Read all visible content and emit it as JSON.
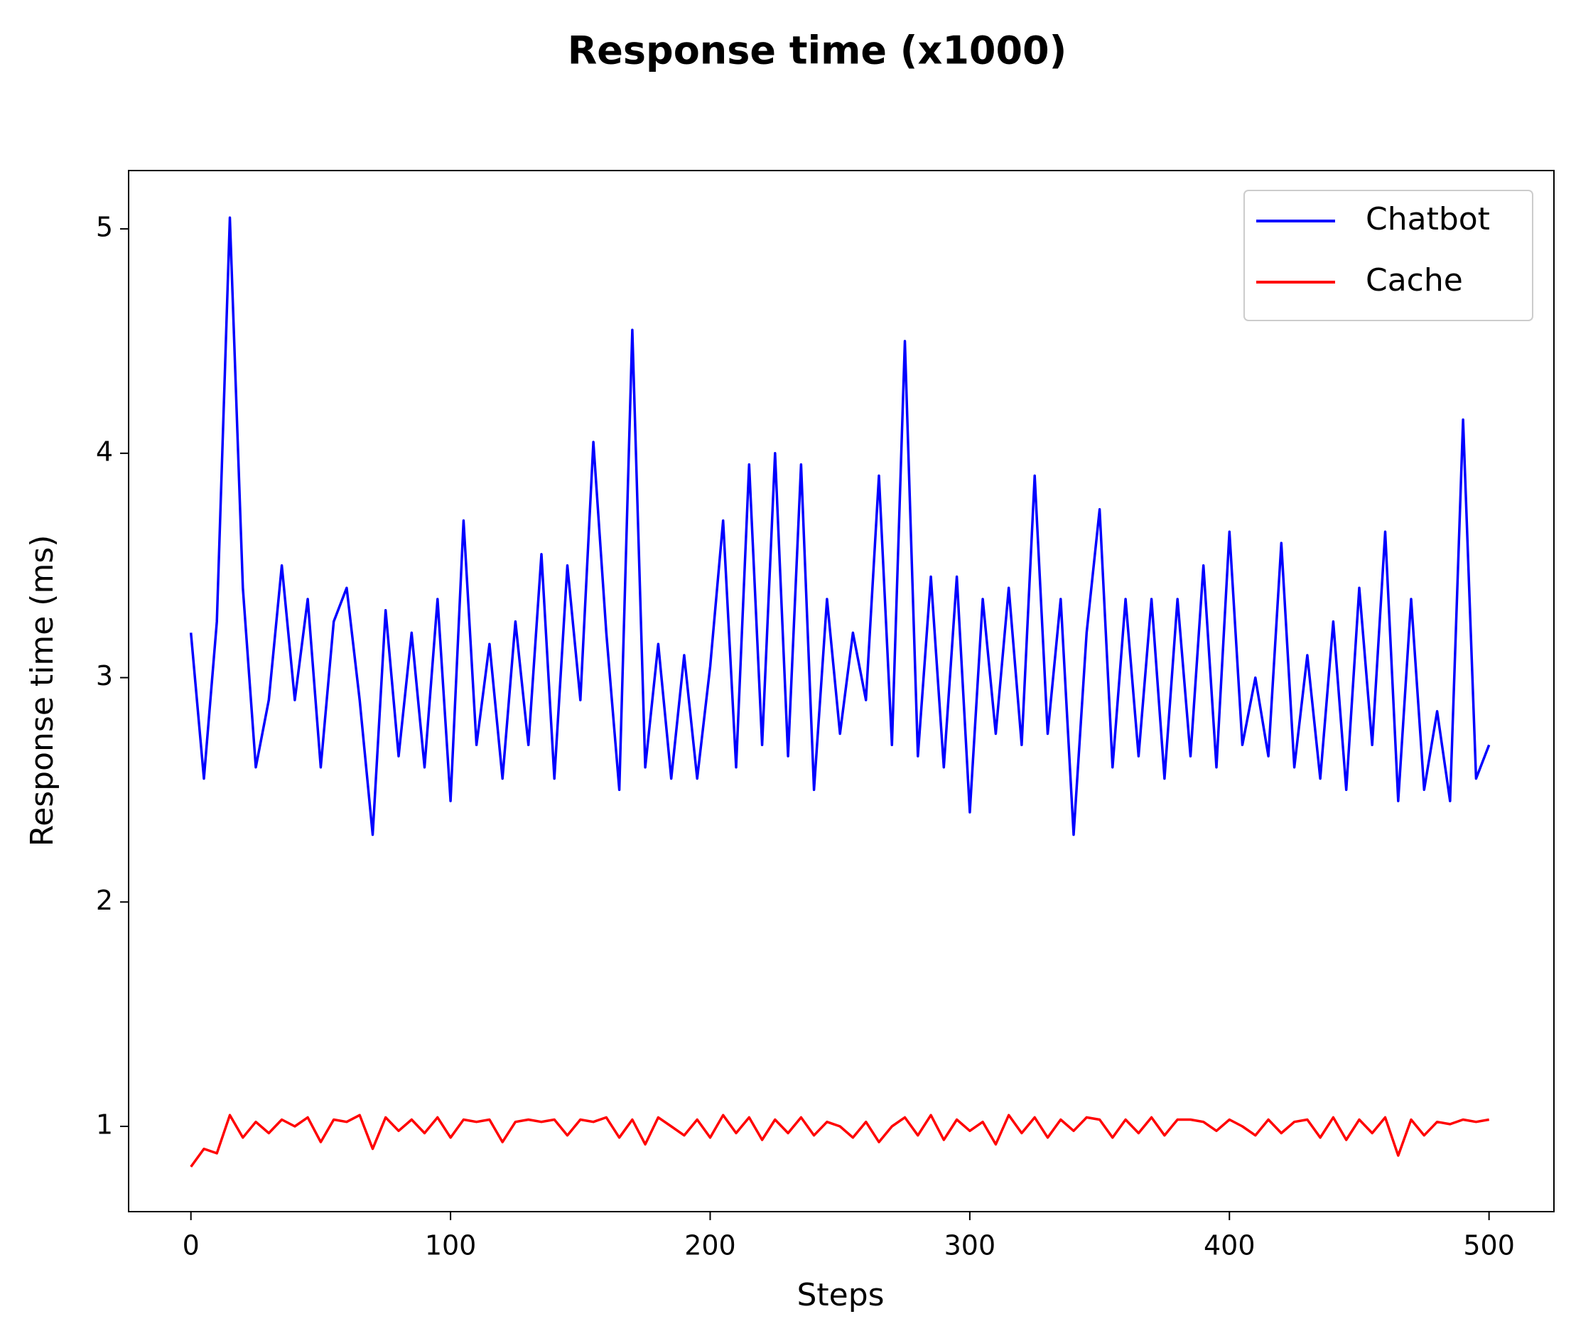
{
  "chart_data": {
    "type": "line",
    "title": "Response time (x1000)",
    "x_label": "Steps",
    "y_label": "Response time (ms)",
    "x": [
      0,
      5,
      10,
      15,
      20,
      25,
      30,
      35,
      40,
      45,
      50,
      55,
      60,
      65,
      70,
      75,
      80,
      85,
      90,
      95,
      100,
      105,
      110,
      115,
      120,
      125,
      130,
      135,
      140,
      145,
      150,
      155,
      160,
      165,
      170,
      175,
      180,
      185,
      190,
      195,
      200,
      205,
      210,
      215,
      220,
      225,
      230,
      235,
      240,
      245,
      250,
      255,
      260,
      265,
      270,
      275,
      280,
      285,
      290,
      295,
      300,
      305,
      310,
      315,
      320,
      325,
      330,
      335,
      340,
      345,
      350,
      355,
      360,
      365,
      370,
      375,
      380,
      385,
      390,
      395,
      400,
      405,
      410,
      415,
      420,
      425,
      430,
      435,
      440,
      445,
      450,
      455,
      460,
      465,
      470,
      475,
      480,
      485,
      490,
      495,
      500
    ],
    "series": [
      {
        "name": "Chatbot",
        "color": "#0000ff",
        "values": [
          3.2,
          2.55,
          3.25,
          5.05,
          3.4,
          2.6,
          2.9,
          3.5,
          2.9,
          3.35,
          2.6,
          3.25,
          3.4,
          2.9,
          2.3,
          3.3,
          2.65,
          3.2,
          2.6,
          3.35,
          2.45,
          3.7,
          2.7,
          3.15,
          2.55,
          3.25,
          2.7,
          3.55,
          2.55,
          3.5,
          2.9,
          4.05,
          3.2,
          2.5,
          4.55,
          2.6,
          3.15,
          2.55,
          3.1,
          2.55,
          3.05,
          3.7,
          2.6,
          3.95,
          2.7,
          4.0,
          2.65,
          3.95,
          2.5,
          3.35,
          2.75,
          3.2,
          2.9,
          3.9,
          2.7,
          4.5,
          2.65,
          3.45,
          2.6,
          3.45,
          2.4,
          3.35,
          2.75,
          3.4,
          2.7,
          3.9,
          2.75,
          3.35,
          2.3,
          3.2,
          3.75,
          2.6,
          3.35,
          2.65,
          3.35,
          2.55,
          3.35,
          2.65,
          3.5,
          2.6,
          3.65,
          2.7,
          3.0,
          2.65,
          3.6,
          2.6,
          3.1,
          2.55,
          3.25,
          2.5,
          3.4,
          2.7,
          3.65,
          2.45,
          3.35,
          2.5,
          2.85,
          2.45,
          4.15,
          2.55,
          2.7
        ]
      },
      {
        "name": "Cache",
        "color": "#ff0000",
        "values": [
          0.82,
          0.9,
          0.88,
          1.05,
          0.95,
          1.02,
          0.97,
          1.03,
          1.0,
          1.04,
          0.93,
          1.03,
          1.02,
          1.05,
          0.9,
          1.04,
          0.98,
          1.03,
          0.97,
          1.04,
          0.95,
          1.03,
          1.02,
          1.03,
          0.93,
          1.02,
          1.03,
          1.02,
          1.03,
          0.96,
          1.03,
          1.02,
          1.04,
          0.95,
          1.03,
          0.92,
          1.04,
          1.0,
          0.96,
          1.03,
          0.95,
          1.05,
          0.97,
          1.04,
          0.94,
          1.03,
          0.97,
          1.04,
          0.96,
          1.02,
          1.0,
          0.95,
          1.02,
          0.93,
          1.0,
          1.04,
          0.96,
          1.05,
          0.94,
          1.03,
          0.98,
          1.02,
          0.92,
          1.05,
          0.97,
          1.04,
          0.95,
          1.03,
          0.98,
          1.04,
          1.03,
          0.95,
          1.03,
          0.97,
          1.04,
          0.96,
          1.03,
          1.03,
          1.02,
          0.98,
          1.03,
          1.0,
          0.96,
          1.03,
          0.97,
          1.02,
          1.03,
          0.95,
          1.04,
          0.94,
          1.03,
          0.97,
          1.04,
          0.87,
          1.03,
          0.96,
          1.02,
          1.01,
          1.03,
          1.02,
          1.03
        ]
      }
    ],
    "xlim": [
      -24,
      525
    ],
    "ylim": [
      0.62,
      5.26
    ],
    "xticks": [
      0,
      100,
      200,
      300,
      400,
      500
    ],
    "yticks": [
      1,
      2,
      3,
      4,
      5
    ],
    "grid": false,
    "legend": "upper right"
  }
}
